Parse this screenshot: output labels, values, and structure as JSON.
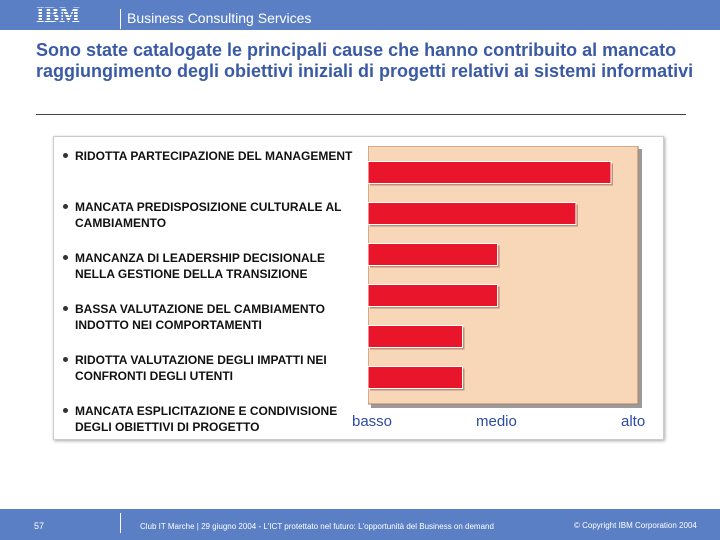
{
  "header": {
    "logo_text": "IBM",
    "section": "Business Consulting Services"
  },
  "slide": {
    "title": "Sono state catalogate le principali cause che hanno contribuito al mancato raggiungimento degli obiettivi iniziali di progetti relativi ai sistemi informativi"
  },
  "chart_data": {
    "type": "bar",
    "orientation": "horizontal",
    "categories": [
      "RIDOTTA PARTECIPAZIONE DEL MANAGEMENT",
      "MANCATA PREDISPOSIZIONE CULTURALE AL CAMBIAMENTO",
      "MANCANZA DI LEADERSHIP DECISIONALE NELLA GESTIONE DELLA TRANSIZIONE",
      "BASSA VALUTAZIONE DEL CAMBIAMENTO INDOTTO NEI COMPORTAMENTI",
      "RIDOTTA VALUTAZIONE DEGLI IMPATTI NEI CONFRONTI DEGLI UTENTI",
      "MANCATA ESPLICITAZIONE E CONDIVISIONE DEGLI OBIETTIVI DI PROGETTO"
    ],
    "values": [
      0.9,
      0.77,
      0.48,
      0.48,
      0.35,
      0.35
    ],
    "xlim": [
      0,
      1
    ],
    "xticks": [
      "basso",
      "medio",
      "alto"
    ],
    "grid": false,
    "colors": {
      "bar": "#e8152b",
      "background": "#f8d7b8"
    }
  },
  "footer": {
    "page": "57",
    "text": "Club IT Marche | 29 giugno 2004 - L'ICT protettato nel futuro: L'opportunità del Business on demand",
    "copyright": "© Copyright IBM Corporation 2004"
  }
}
